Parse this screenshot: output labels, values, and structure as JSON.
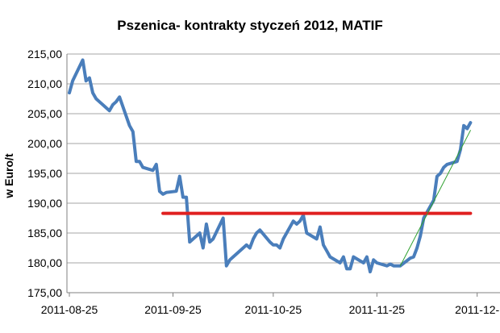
{
  "chart_data": {
    "type": "line",
    "title": "Pszenica- kontrakty styczeń 2012, MATIF",
    "ylabel": "w Euro/t",
    "xlabel": "",
    "ylim": [
      175,
      215
    ],
    "yticks": [
      "175,00",
      "180,00",
      "185,00",
      "190,00",
      "195,00",
      "200,00",
      "205,00",
      "210,00",
      "215,00"
    ],
    "xticks": [
      "2011-08-25",
      "2011-09-25",
      "2011-10-25",
      "2011-11-25",
      "2011-12-"
    ],
    "grid": "horizontal",
    "legend": "none",
    "colors": {
      "price": "#4a7ebb",
      "resistance": "#e02020",
      "trend": "#2ea02e"
    },
    "series": [
      {
        "style": "price",
        "x": [
          "2011-08-25",
          "2011-08-26",
          "2011-08-29",
          "2011-08-30",
          "2011-08-31",
          "2011-09-01",
          "2011-09-02",
          "2011-09-05",
          "2011-09-06",
          "2011-09-07",
          "2011-09-08",
          "2011-09-09",
          "2011-09-12",
          "2011-09-13",
          "2011-09-14",
          "2011-09-15",
          "2011-09-16",
          "2011-09-19",
          "2011-09-20",
          "2011-09-21",
          "2011-09-22",
          "2011-09-23",
          "2011-09-26",
          "2011-09-27",
          "2011-09-28",
          "2011-09-29",
          "2011-09-30",
          "2011-10-03",
          "2011-10-04",
          "2011-10-05",
          "2011-10-06",
          "2011-10-07",
          "2011-10-10",
          "2011-10-11",
          "2011-10-12",
          "2011-10-13",
          "2011-10-14",
          "2011-10-17",
          "2011-10-18",
          "2011-10-19",
          "2011-10-20",
          "2011-10-21",
          "2011-10-24",
          "2011-10-25",
          "2011-10-26",
          "2011-10-27",
          "2011-10-28",
          "2011-10-31",
          "2011-11-01",
          "2011-11-02",
          "2011-11-03",
          "2011-11-04",
          "2011-11-07",
          "2011-11-08",
          "2011-11-09",
          "2011-11-10",
          "2011-11-11",
          "2011-11-14",
          "2011-11-15",
          "2011-11-16",
          "2011-11-17",
          "2011-11-18",
          "2011-11-21",
          "2011-11-22",
          "2011-11-23",
          "2011-11-24",
          "2011-11-25",
          "2011-11-28",
          "2011-11-29",
          "2011-11-30",
          "2011-12-01",
          "2011-12-02",
          "2011-12-05",
          "2011-12-06",
          "2011-12-07",
          "2011-12-08",
          "2011-12-09",
          "2011-12-12",
          "2011-12-13",
          "2011-12-14",
          "2011-12-15",
          "2011-12-16",
          "2011-12-19",
          "2011-12-20",
          "2011-12-21",
          "2011-12-22",
          "2011-12-23"
        ],
        "y": [
          208.5,
          210.5,
          214.0,
          210.5,
          211.0,
          208.5,
          207.5,
          206.0,
          205.5,
          206.5,
          207.0,
          207.8,
          203.0,
          202.0,
          197.0,
          197.0,
          196.0,
          195.5,
          196.5,
          192.0,
          191.5,
          191.8,
          192.0,
          194.5,
          191.0,
          191.0,
          183.5,
          185.0,
          182.5,
          186.5,
          183.5,
          184.0,
          187.5,
          179.5,
          180.5,
          181.0,
          181.5,
          183.0,
          182.5,
          184.0,
          185.0,
          185.5,
          183.5,
          183.0,
          183.0,
          182.5,
          184.0,
          187.0,
          186.5,
          187.0,
          188.0,
          185.0,
          184.0,
          186.0,
          183.0,
          182.0,
          181.0,
          180.0,
          181.0,
          179.0,
          179.0,
          181.0,
          180.0,
          181.0,
          178.5,
          180.5,
          180.0,
          179.5,
          179.8,
          179.5,
          179.5,
          179.5,
          180.8,
          181.0,
          182.5,
          184.5,
          187.5,
          190.5,
          194.5,
          195.0,
          196.0,
          196.5,
          197.0,
          199.0,
          203.0,
          202.5,
          203.5
        ]
      },
      {
        "style": "resistance",
        "x": [
          "2011-09-22",
          "2011-12-23"
        ],
        "y": [
          188.3,
          188.3
        ]
      },
      {
        "style": "trend",
        "x": [
          "2011-12-02",
          "2011-12-23"
        ],
        "y": [
          179.5,
          202.2
        ]
      }
    ]
  }
}
